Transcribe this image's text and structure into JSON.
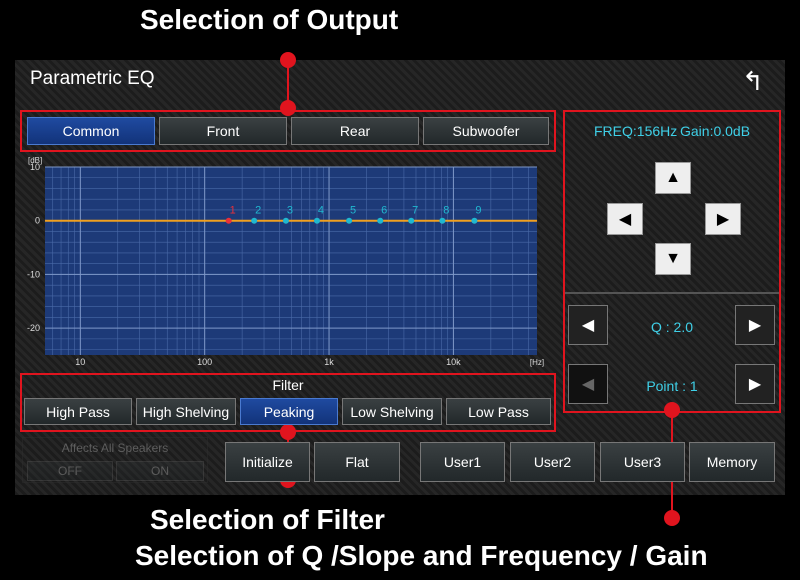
{
  "annotations": {
    "output": "Selection of Output",
    "filter": "Selection of Filter",
    "q_freq_gain": "Selection of Q /Slope and Frequency / Gain"
  },
  "screen": {
    "title": "Parametric EQ",
    "output_tabs": {
      "options": [
        "Common",
        "Front",
        "Rear",
        "Subwoofer"
      ],
      "selected": 0
    },
    "eq_graph": {
      "y_unit": "[dB]",
      "x_unit": "[Hz]",
      "log_x": true,
      "ylim": [
        -25,
        10
      ],
      "yticks": [
        10,
        0,
        -10,
        -20
      ],
      "xlim": [
        5.2,
        47000
      ],
      "xticks": [
        10,
        100,
        {
          "value": 1000,
          "label": "1k"
        },
        {
          "value": 10000,
          "label": "10k"
        }
      ],
      "points": {
        "labels": [
          "1",
          "2",
          "3",
          "4",
          "5",
          "6",
          "7",
          "8",
          "9"
        ],
        "freqs": [
          156,
          250,
          450,
          800,
          1450,
          2580,
          4580,
          8150,
          14750
        ],
        "gains": [
          0,
          0,
          0,
          0,
          0,
          0,
          0,
          0,
          0
        ],
        "selected": 0
      }
    },
    "filter": {
      "title": "Filter",
      "options": [
        "High Pass",
        "High Shelving",
        "Peaking",
        "Low Shelving",
        "Low Pass"
      ],
      "selected": 2
    },
    "adjust": {
      "freq": "FREQ:156Hz",
      "gain": "Gain:0.0dB",
      "q": "Q : 2.0",
      "point": "Point : 1"
    },
    "affects": {
      "title": "Affects All Speakers",
      "options": [
        "OFF",
        "ON"
      ]
    },
    "actions": [
      "Initialize",
      "Flat"
    ],
    "memory": [
      "User1",
      "User2",
      "User3",
      "Memory"
    ]
  }
}
